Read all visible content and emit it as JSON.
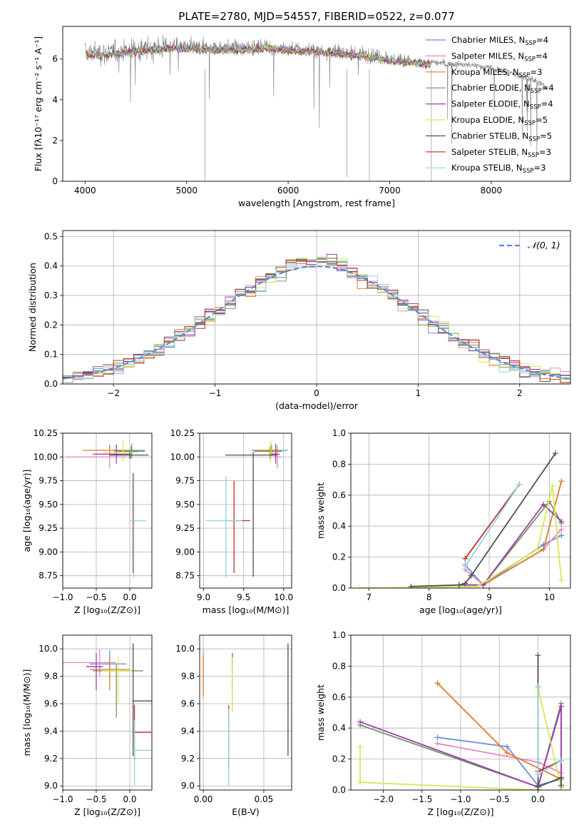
{
  "chart_data": [
    {
      "id": "spectrum",
      "type": "line",
      "title": "PLATE=2780, MJD=54557, FIBERID=0522, z=0.077",
      "xlabel": "wavelength [Angstrom, rest frame]",
      "ylabel": "Flux [fλ10⁻¹⁷ erg cm⁻² s⁻¹ A⁻¹]",
      "xlim": [
        3780,
        8780
      ],
      "ylim": [
        0,
        7.6
      ],
      "xticks": [
        4000,
        5000,
        6000,
        7000,
        8000
      ],
      "yticks": [
        0,
        2,
        4,
        6
      ],
      "grid": false,
      "legend_position": "right",
      "data_color": "#808080",
      "data_envelope": {
        "x": [
          4000,
          4200,
          4500,
          4800,
          5000,
          5200,
          5500,
          5800,
          6000,
          6200,
          6500,
          6800,
          7000,
          7200,
          7400,
          7600,
          7800,
          8000,
          8200,
          8400,
          8550
        ],
        "y": [
          6.3,
          6.3,
          6.45,
          6.6,
          6.6,
          6.55,
          6.55,
          6.6,
          6.5,
          6.45,
          6.35,
          6.2,
          6.0,
          5.9,
          5.85,
          5.75,
          5.7,
          5.55,
          5.3,
          5.0,
          4.6
        ]
      },
      "model_range": [
        4000,
        7400
      ]
    },
    {
      "id": "residuals",
      "type": "step",
      "xlabel": "(data-model)/error",
      "ylabel": "Normed distribution",
      "xlim": [
        -2.5,
        2.5
      ],
      "ylim": [
        0,
        0.52
      ],
      "xticks": [
        -2,
        -1,
        0,
        1,
        2
      ],
      "yticks": [
        0.0,
        0.1,
        0.2,
        0.3,
        0.4,
        0.5
      ],
      "grid": true,
      "legend_position": "top-right",
      "normal_label": "𝒩(0, 1)",
      "bin_width": 0.1
    },
    {
      "id": "age-vs-z",
      "type": "errorbar",
      "xlabel": "Z [log₁₀(Z/Z⊙)]",
      "ylabel": "age  [log₁₀(age/yr)]",
      "xlim": [
        -1.0,
        0.33
      ],
      "ylim": [
        8.62,
        10.25
      ],
      "xticks": [
        -1.0,
        -0.5,
        0.0
      ],
      "yticks": [
        8.75,
        9.0,
        9.25,
        9.5,
        9.75,
        10.0,
        10.25
      ],
      "grid": true,
      "points": [
        {
          "series": 0,
          "x": 0.03,
          "y": 10.07,
          "xerr": [
            0.3,
            0.2
          ],
          "yerr": [
            0.07,
            0.07
          ]
        },
        {
          "series": 1,
          "x": -0.3,
          "y": 10.0,
          "xerr": [
            0.65,
            0.25
          ],
          "yerr": [
            0.12,
            0.12
          ]
        },
        {
          "series": 2,
          "x": -0.3,
          "y": 10.07,
          "xerr": [
            0.4,
            0.3
          ],
          "yerr": [
            0.06,
            0.06
          ]
        },
        {
          "series": 3,
          "x": 0.02,
          "y": 10.06,
          "xerr": [
            0.25,
            0.2
          ],
          "yerr": [
            0.08,
            0.05
          ]
        },
        {
          "series": 4,
          "x": -0.2,
          "y": 10.03,
          "xerr": [
            0.35,
            0.2
          ],
          "yerr": [
            0.1,
            0.1
          ]
        },
        {
          "series": 5,
          "x": -0.1,
          "y": 10.05,
          "xerr": [
            0.3,
            0.22
          ],
          "yerr": [
            0.1,
            0.12
          ]
        },
        {
          "series": 6,
          "x": 0.0,
          "y": 10.02,
          "xerr": [
            0.3,
            0.28
          ],
          "yerr": [
            0.04,
            0.03
          ]
        },
        {
          "series": 7,
          "x": 0.05,
          "y": 9.33,
          "xerr": [
            0.03,
            0.03
          ],
          "yerr": [
            0.55,
            0.5
          ]
        },
        {
          "series": 8,
          "x": 0.06,
          "y": 9.33,
          "xerr": [
            0.05,
            0.18
          ],
          "yerr": [
            0.6,
            0.5
          ]
        }
      ]
    },
    {
      "id": "age-vs-mass",
      "type": "errorbar",
      "xlabel": "mass [log₁₀(M/M⊙)]",
      "ylabel": "",
      "xlim": [
        8.95,
        10.1
      ],
      "ylim": [
        8.62,
        10.25
      ],
      "xticks": [
        9.0,
        9.5,
        10.0
      ],
      "yticks": [
        8.75,
        9.0,
        9.25,
        9.5,
        9.75,
        10.0,
        10.25
      ],
      "grid": true,
      "points": [
        {
          "series": 0,
          "x": 9.9,
          "y": 10.07,
          "xerr": [
            0.3,
            0.15
          ],
          "yerr": [
            0.07,
            0.07
          ]
        },
        {
          "series": 1,
          "x": 9.92,
          "y": 10.0,
          "xerr": [
            0.05,
            0.05
          ],
          "yerr": [
            0.12,
            0.12
          ]
        },
        {
          "series": 2,
          "x": 9.85,
          "y": 10.07,
          "xerr": [
            0.2,
            0.1
          ],
          "yerr": [
            0.06,
            0.06
          ]
        },
        {
          "series": 3,
          "x": 9.83,
          "y": 10.06,
          "xerr": [
            0.2,
            0.15
          ],
          "yerr": [
            0.08,
            0.05
          ]
        },
        {
          "series": 4,
          "x": 9.9,
          "y": 10.03,
          "xerr": [
            0.05,
            0.05
          ],
          "yerr": [
            0.1,
            0.1
          ]
        },
        {
          "series": 5,
          "x": 9.84,
          "y": 10.05,
          "xerr": [
            0.05,
            0.05
          ],
          "yerr": [
            0.1,
            0.12
          ]
        },
        {
          "series": 6,
          "x": 9.62,
          "y": 10.02,
          "xerr": [
            0.35,
            0.3
          ],
          "yerr": [
            1.28,
            0.03
          ]
        },
        {
          "series": 7,
          "x": 9.38,
          "y": 9.33,
          "xerr": [
            0.1,
            0.2
          ],
          "yerr": [
            0.55,
            0.42
          ]
        },
        {
          "series": 8,
          "x": 9.28,
          "y": 9.33,
          "xerr": [
            0.25,
            0.2
          ],
          "yerr": [
            0.6,
            0.47
          ]
        }
      ]
    },
    {
      "id": "massweight-vs-age",
      "type": "line",
      "xlabel": "age  [log₁₀(age/yr)]",
      "ylabel": "mass weight",
      "xlim": [
        6.7,
        10.35
      ],
      "ylim": [
        0,
        1.0
      ],
      "xticks": [
        7,
        8,
        9,
        10
      ],
      "yticks": [
        0.0,
        0.2,
        0.4,
        0.6,
        0.8,
        1.0
      ],
      "grid": true,
      "series": [
        {
          "name": "Chabrier MILES, N_SSP=4",
          "x": [
            8.6,
            8.9,
            9.9,
            10.2
          ],
          "y": [
            0.15,
            0.02,
            0.28,
            0.34
          ]
        },
        {
          "name": "Salpeter MILES, N_SSP=4",
          "x": [
            8.6,
            8.9,
            9.9,
            10.2
          ],
          "y": [
            0.12,
            0.02,
            0.25,
            0.38
          ]
        },
        {
          "name": "Kroupa MILES, N_SSP=3",
          "x": [
            8.9,
            9.9,
            10.2
          ],
          "y": [
            0.02,
            0.25,
            0.69
          ]
        },
        {
          "name": "Chabrier ELODIE, N_SSP=4",
          "x": [
            8.5,
            8.9,
            10.0,
            10.2
          ],
          "y": [
            0.02,
            0.02,
            0.56,
            0.42
          ]
        },
        {
          "name": "Salpeter ELODIE, N_SSP=4",
          "x": [
            8.5,
            8.9,
            9.9,
            10.2
          ],
          "y": [
            0.02,
            0.02,
            0.54,
            0.43
          ]
        },
        {
          "name": "Kroupa ELODIE, N_SSP=5",
          "x": [
            6.85,
            8.8,
            9.8,
            10.05,
            10.2
          ],
          "y": [
            0.0,
            0.01,
            0.25,
            0.66,
            0.05
          ]
        },
        {
          "name": "Chabrier STELIB, N_SSP=5",
          "x": [
            7.7,
            8.5,
            8.6,
            8.7,
            10.1
          ],
          "y": [
            0.01,
            0.02,
            0.03,
            0.08,
            0.87
          ]
        },
        {
          "name": "Salpeter STELIB, N_SSP=3",
          "x": [
            8.6,
            9.5
          ],
          "y": [
            0.19,
            0.67
          ]
        },
        {
          "name": "Kroupa STELIB, N_SSP=3",
          "x": [
            8.6,
            9.5
          ],
          "y": [
            0.14,
            0.67
          ]
        }
      ]
    },
    {
      "id": "mass-vs-z",
      "type": "errorbar",
      "xlabel": "Z [log₁₀(Z/Z⊙)]",
      "ylabel": "mass [log₁₀(M/M⊙)]",
      "xlim": [
        -1.0,
        0.33
      ],
      "ylim": [
        8.97,
        10.1
      ],
      "xticks": [
        -1.0,
        -0.5,
        0.0
      ],
      "yticks": [
        9.0,
        9.2,
        9.4,
        9.6,
        9.8,
        10.0
      ],
      "grid": true,
      "points": [
        {
          "series": 0,
          "x": -0.3,
          "y": 9.89,
          "xerr": [
            0.3,
            0.25
          ],
          "yerr": [
            0.1,
            0.1
          ]
        },
        {
          "series": 1,
          "x": -0.45,
          "y": 9.9,
          "xerr": [
            0.55,
            0.25
          ],
          "yerr": [
            0.1,
            0.1
          ]
        },
        {
          "series": 2,
          "x": -0.3,
          "y": 9.85,
          "xerr": [
            0.3,
            0.3
          ],
          "yerr": [
            0.15,
            0.1
          ]
        },
        {
          "series": 3,
          "x": -0.2,
          "y": 9.84,
          "xerr": [
            0.35,
            0.4
          ],
          "yerr": [
            0.34,
            0.05
          ]
        },
        {
          "series": 4,
          "x": -0.5,
          "y": 9.87,
          "xerr": [
            0.15,
            0.1
          ],
          "yerr": [
            0.17,
            0.1
          ]
        },
        {
          "series": 5,
          "x": -0.17,
          "y": 9.84,
          "xerr": [
            0.25,
            0.2
          ],
          "yerr": [
            0.24,
            0.1
          ]
        },
        {
          "series": 6,
          "x": 0.05,
          "y": 9.62,
          "xerr": [
            0.01,
            0.3
          ],
          "yerr": [
            0.4,
            0.42
          ]
        },
        {
          "series": 7,
          "x": 0.07,
          "y": 9.39,
          "xerr": [
            0.01,
            0.25
          ],
          "yerr": [
            0.2,
            0.2
          ]
        },
        {
          "series": 8,
          "x": 0.07,
          "y": 9.26,
          "xerr": [
            0.02,
            0.25
          ],
          "yerr": [
            0.26,
            0.22
          ]
        }
      ]
    },
    {
      "id": "mass-vs-ebv",
      "type": "errorbar",
      "xlabel": "E(B-V)",
      "ylabel": "",
      "xlim": [
        -0.003,
        0.073
      ],
      "ylim": [
        8.97,
        10.1
      ],
      "xticks": [
        0.0,
        0.05
      ],
      "yticks": [
        9.0,
        9.2,
        9.4,
        9.6,
        9.8,
        10.0
      ],
      "grid": true,
      "points": [
        {
          "series": 1,
          "x": 0.0,
          "y": 9.9,
          "xerr": [
            0,
            0
          ],
          "yerr": [
            0.1,
            0.1
          ]
        },
        {
          "series": 2,
          "x": 0.0,
          "y": 9.85,
          "xerr": [
            0,
            0
          ],
          "yerr": [
            0.2,
            0.1
          ]
        },
        {
          "series": 3,
          "x": 0.024,
          "y": 9.84,
          "xerr": [
            0,
            0
          ],
          "yerr": [
            0.3,
            0.1
          ]
        },
        {
          "series": 4,
          "x": 0.024,
          "y": 9.87,
          "xerr": [
            0,
            0
          ],
          "yerr": [
            0.17,
            0.1
          ]
        },
        {
          "series": 5,
          "x": 0.024,
          "y": 9.84,
          "xerr": [
            0,
            0
          ],
          "yerr": [
            0.3,
            0.1
          ]
        },
        {
          "series": 6,
          "x": 0.07,
          "y": 9.62,
          "xerr": [
            0,
            0
          ],
          "yerr": [
            0.4,
            0.42
          ]
        },
        {
          "series": 7,
          "x": 0.021,
          "y": 9.39,
          "xerr": [
            0,
            0
          ],
          "yerr": [
            0.25,
            0.2
          ]
        },
        {
          "series": 8,
          "x": 0.021,
          "y": 9.26,
          "xerr": [
            0,
            0
          ],
          "yerr": [
            0.26,
            0.3
          ]
        }
      ]
    },
    {
      "id": "massweight-vs-z",
      "type": "line",
      "xlabel": "Z [log₁₀(Z/Z⊙)]",
      "ylabel": "mass weight",
      "xlim": [
        -2.42,
        0.42
      ],
      "ylim": [
        0,
        1.0
      ],
      "xticks": [
        -2.0,
        -1.5,
        -1.0,
        -0.5,
        0.0
      ],
      "yticks": [
        0.0,
        0.2,
        0.4,
        0.6,
        0.8,
        1.0
      ],
      "grid": true,
      "series": [
        {
          "name": "Chabrier MILES, N_SSP=4",
          "x": [
            -1.3,
            -0.4,
            0.0,
            0.3
          ],
          "y": [
            0.34,
            0.28,
            0.03,
            0.07
          ]
        },
        {
          "name": "Salpeter MILES, N_SSP=4",
          "x": [
            -1.3,
            0.0,
            0.3,
            0.3
          ],
          "y": [
            0.3,
            0.18,
            0.11,
            0.02
          ]
        },
        {
          "name": "Kroupa MILES, N_SSP=3",
          "x": [
            -1.3,
            -0.4,
            0.3
          ],
          "y": [
            0.69,
            0.24,
            0.07
          ]
        },
        {
          "name": "Chabrier ELODIE, N_SSP=4",
          "x": [
            -2.3,
            0.0,
            0.3,
            0.3
          ],
          "y": [
            0.42,
            0.02,
            0.56,
            0.02
          ]
        },
        {
          "name": "Salpeter ELODIE, N_SSP=4",
          "x": [
            -2.3,
            0.0,
            0.3,
            0.3
          ],
          "y": [
            0.44,
            0.02,
            0.54,
            0.02
          ]
        },
        {
          "name": "Kroupa ELODIE, N_SSP=5",
          "x": [
            -2.3,
            -2.3,
            0.0,
            0.0,
            0.3
          ],
          "y": [
            0.28,
            0.05,
            0.0,
            0.66,
            0.02
          ]
        },
        {
          "name": "Chabrier STELIB, N_SSP=5",
          "x": [
            0.0,
            0.0,
            0.0,
            0.3,
            0.3
          ],
          "y": [
            0.87,
            0.0,
            0.02,
            0.08,
            0.03
          ]
        },
        {
          "name": "Salpeter STELIB, N_SSP=3",
          "x": [
            0.0,
            0.0,
            0.3
          ],
          "y": [
            0.67,
            0.12,
            0.19
          ]
        },
        {
          "name": "Kroupa STELIB, N_SSP=3",
          "x": [
            0.0,
            0.0,
            0.3
          ],
          "y": [
            0.67,
            0.1,
            0.19
          ]
        }
      ]
    }
  ],
  "legend": [
    {
      "name": "Chabrier MILES, N",
      "sub": "SSP",
      "suffix": "=4",
      "color": "#6B8ED6"
    },
    {
      "name": "Salpeter MILES, N",
      "sub": "SSP",
      "suffix": "=4",
      "color": "#E785C1"
    },
    {
      "name": "Kroupa MILES, N",
      "sub": "SSP",
      "suffix": "=3",
      "color": "#DE7B28"
    },
    {
      "name": "Chabrier ELODIE, N",
      "sub": "SSP",
      "suffix": "=4",
      "color": "#6A9A55"
    },
    {
      "name": "Salpeter ELODIE, N",
      "sub": "SSP",
      "suffix": "=4",
      "color": "#A03AB6"
    },
    {
      "name": "Kroupa ELODIE, N",
      "sub": "SSP",
      "suffix": "=5",
      "color": "#D5E85A"
    },
    {
      "name": "Chabrier STELIB, N",
      "sub": "SSP",
      "suffix": "=5",
      "color": "#505050"
    },
    {
      "name": "Salpeter STELIB, N",
      "sub": "SSP",
      "suffix": "=3",
      "color": "#C0302A"
    },
    {
      "name": "Kroupa STELIB, N",
      "sub": "SSP",
      "suffix": "=3",
      "color": "#8ED8D6"
    }
  ],
  "colors": {
    "grid": "#b0b0b0",
    "normal": "#5A8AD6",
    "data": "#808080"
  }
}
